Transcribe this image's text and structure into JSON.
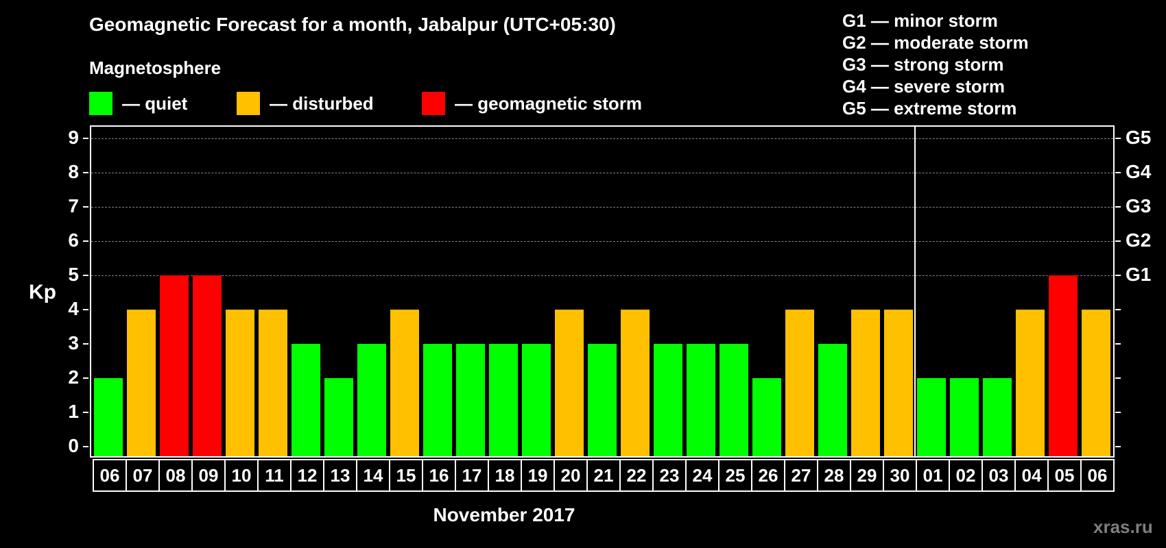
{
  "header": {
    "title": "Geomagnetic Forecast for a month, Jabalpur (UTC+05:30)",
    "subtitle": "Magnetosphere"
  },
  "legend": [
    {
      "label": "— quiet",
      "color": "#00ff00"
    },
    {
      "label": "— disturbed",
      "color": "#ffc000"
    },
    {
      "label": "— geomagnetic storm",
      "color": "#ff0000"
    }
  ],
  "storm_scale": [
    "G1 — minor storm",
    "G2 — moderate storm",
    "G3 — strong storm",
    "G4 — severe storm",
    "G5 — extreme storm"
  ],
  "axes": {
    "ylabel": "Kp",
    "xlabel": "November 2017",
    "yticks": [
      "0",
      "1",
      "2",
      "3",
      "4",
      "5",
      "6",
      "7",
      "8",
      "9"
    ],
    "right_ticks": [
      {
        "value": 5,
        "label": "G1"
      },
      {
        "value": 6,
        "label": "G2"
      },
      {
        "value": 7,
        "label": "G3"
      },
      {
        "value": 8,
        "label": "G4"
      },
      {
        "value": 9,
        "label": "G5"
      }
    ]
  },
  "watermark": "xras.ru",
  "colors": {
    "quiet": "#00ff00",
    "disturbed": "#ffc000",
    "storm": "#ff0000"
  },
  "chart_data": {
    "type": "bar",
    "title": "Geomagnetic Forecast for a month, Jabalpur (UTC+05:30)",
    "xlabel": "November 2017",
    "ylabel": "Kp",
    "ylim": [
      0,
      9
    ],
    "grid": true,
    "legend_position": "top",
    "categories": [
      "06",
      "07",
      "08",
      "09",
      "10",
      "11",
      "12",
      "13",
      "14",
      "15",
      "16",
      "17",
      "18",
      "19",
      "20",
      "21",
      "22",
      "23",
      "24",
      "25",
      "26",
      "27",
      "28",
      "29",
      "30",
      "01",
      "02",
      "03",
      "04",
      "05",
      "06"
    ],
    "values": [
      2,
      4,
      5,
      5,
      4,
      4,
      3,
      2,
      3,
      4,
      3,
      3,
      3,
      3,
      4,
      3,
      4,
      3,
      3,
      3,
      2,
      4,
      3,
      4,
      4,
      2,
      2,
      2,
      4,
      5,
      4
    ],
    "status": [
      "quiet",
      "disturbed",
      "storm",
      "storm",
      "disturbed",
      "disturbed",
      "quiet",
      "quiet",
      "quiet",
      "disturbed",
      "quiet",
      "quiet",
      "quiet",
      "quiet",
      "disturbed",
      "quiet",
      "disturbed",
      "quiet",
      "quiet",
      "quiet",
      "quiet",
      "disturbed",
      "quiet",
      "disturbed",
      "disturbed",
      "quiet",
      "quiet",
      "quiet",
      "disturbed",
      "storm",
      "disturbed"
    ],
    "month_separator_after_index": 24,
    "right_axis": {
      "G1": 5,
      "G2": 6,
      "G3": 7,
      "G4": 8,
      "G5": 9
    }
  }
}
